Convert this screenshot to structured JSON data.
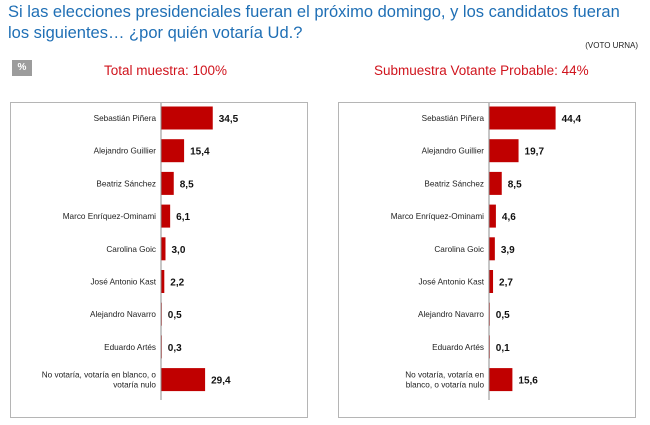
{
  "header": {
    "question_line1": "Si las elecciones presidenciales fueran el próximo domingo, y los candidatos fueran",
    "question_line2": "los siguientes… ¿por quién votaría Ud.?",
    "method": "(VOTO URNA)",
    "badge": "%"
  },
  "colors": {
    "bar": "#c00000",
    "title": "#d0141d",
    "question": "#1f6fb5"
  },
  "chart_data": [
    {
      "type": "bar",
      "orientation": "horizontal",
      "title": "Total muestra: 100%",
      "categories": [
        "Sebastián Piñera",
        "Alejandro Guillier",
        "Beatriz Sánchez",
        "Marco Enríquez-Ominami",
        "Carolina Goic",
        "José Antonio Kast",
        "Alejandro Navarro",
        "Eduardo Artés",
        "No votaría, votaría en blanco, o votaría nulo"
      ],
      "category_lines": [
        [
          "Sebastián Piñera"
        ],
        [
          "Alejandro Guillier"
        ],
        [
          "Beatriz Sánchez"
        ],
        [
          "Marco Enríquez-Ominami"
        ],
        [
          "Carolina Goic"
        ],
        [
          "José Antonio Kast"
        ],
        [
          "Alejandro Navarro"
        ],
        [
          "Eduardo Artés"
        ],
        [
          "No votaría, votaría en blanco, o",
          "votaría nulo"
        ]
      ],
      "values": [
        34.5,
        15.4,
        8.5,
        6.1,
        3.0,
        2.2,
        0.5,
        0.3,
        29.4
      ],
      "value_labels": [
        "34,5",
        "15,4",
        "8,5",
        "6,1",
        "3,0",
        "2,2",
        "0,5",
        "0,3",
        "29,4"
      ],
      "xlim": [
        0,
        100
      ]
    },
    {
      "type": "bar",
      "orientation": "horizontal",
      "title": "Submuestra Votante Probable: 44%",
      "categories": [
        "Sebastián Piñera",
        "Alejandro Guillier",
        "Beatriz Sánchez",
        "Marco Enríquez-Ominami",
        "Carolina Goic",
        "José Antonio Kast",
        "Alejandro Navarro",
        "Eduardo Artés",
        "No votaría, votaría en blanco, o votaría nulo"
      ],
      "category_lines": [
        [
          "Sebastián Piñera"
        ],
        [
          "Alejandro Guillier"
        ],
        [
          "Beatriz Sánchez"
        ],
        [
          "Marco Enríquez-Ominami"
        ],
        [
          "Carolina Goic"
        ],
        [
          "José Antonio Kast"
        ],
        [
          "Alejandro Navarro"
        ],
        [
          "Eduardo Artés"
        ],
        [
          "No votaría, votaría en",
          "blanco, o votaría nulo"
        ]
      ],
      "values": [
        44.4,
        19.7,
        8.5,
        4.6,
        3.9,
        2.7,
        0.5,
        0.1,
        15.6
      ],
      "value_labels": [
        "44,4",
        "19,7",
        "8,5",
        "4,6",
        "3,9",
        "2,7",
        "0,5",
        "0,1",
        "15,6"
      ],
      "xlim": [
        0,
        100
      ]
    }
  ]
}
